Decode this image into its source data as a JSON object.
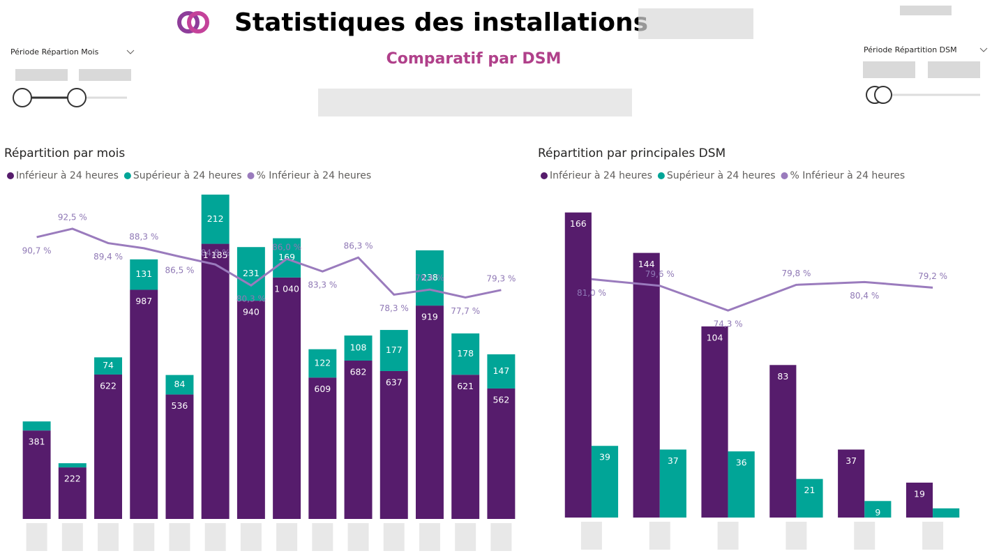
{
  "header": {
    "title": "Statistiques des installations",
    "subtitle": "Comparatif par DSM"
  },
  "slicers": {
    "left": "Période Répartion Mois",
    "right": "Période Répartition DSM"
  },
  "chart_data": [
    {
      "type": "bar",
      "stacked": true,
      "title": "Répartition par mois",
      "categories": [
        null,
        null,
        null,
        null,
        null,
        null,
        null,
        null,
        null,
        null,
        null,
        null,
        null,
        null
      ],
      "ylim": [
        0,
        1400
      ],
      "y2lim": [
        30,
        100
      ],
      "series": [
        {
          "name": "Inférieur à 24 heures",
          "color": "#561c6c",
          "values": [
            381,
            222,
            622,
            987,
            536,
            1185,
            940,
            1040,
            609,
            682,
            637,
            919,
            621,
            562
          ],
          "value_labels": [
            "381",
            "222",
            "622",
            "987",
            "536",
            "1 185",
            "940",
            "1 040",
            "609",
            "682",
            "637",
            "919",
            "621",
            "562"
          ]
        },
        {
          "name": "Supérieur à 24 heures",
          "color": "#01a597",
          "values": [
            39,
            18,
            74,
            131,
            84,
            212,
            231,
            169,
            122,
            108,
            177,
            238,
            178,
            147
          ],
          "value_labels": [
            null,
            null,
            "74",
            "131",
            "84",
            "212",
            "231",
            "169",
            "122",
            "108",
            "177",
            "238",
            "178",
            "147"
          ]
        },
        {
          "name": "% Inférieur à 24 heures",
          "color": "#9a7bbd",
          "type": "line",
          "axis": "y2",
          "values": [
            90.7,
            92.5,
            89.4,
            88.3,
            86.5,
            84.8,
            80.3,
            86.0,
            83.3,
            86.3,
            78.3,
            79.4,
            77.7,
            79.3
          ],
          "value_labels": [
            "90,7 %",
            "92,5 %",
            "89,4 %",
            "88,3 %",
            "86,5 %",
            "84,8 %",
            "80,3 %",
            "86,0 %",
            "83,3 %",
            "86,3 %",
            "78,3 %",
            "79,4 %",
            "77,7 %",
            "79,3 %"
          ]
        }
      ]
    },
    {
      "type": "bar",
      "stacked": false,
      "title": "Répartition par principales DSM",
      "categories": [
        null,
        null,
        null,
        null,
        null,
        null
      ],
      "ylim": [
        0,
        178
      ],
      "y2lim": [
        30,
        100
      ],
      "series": [
        {
          "name": "Inférieur à 24 heures",
          "color": "#561c6c",
          "values": [
            166,
            144,
            104,
            83,
            37,
            19
          ],
          "value_labels": [
            "166",
            "144",
            "104",
            "83",
            "37",
            "19"
          ]
        },
        {
          "name": "Supérieur à 24 heures",
          "color": "#01a597",
          "values": [
            39,
            37,
            36,
            21,
            9,
            5
          ],
          "value_labels": [
            "39",
            "37",
            "36",
            "21",
            "9",
            null
          ]
        },
        {
          "name": "% Inférieur à 24 heures",
          "color": "#9a7bbd",
          "type": "line",
          "axis": "y2",
          "values": [
            81.0,
            79.6,
            74.3,
            79.8,
            80.4,
            79.2
          ],
          "value_labels": [
            "81,0 %",
            "79,6 %",
            "74,3 %",
            "79,8 %",
            "80,4 %",
            "79,2 %"
          ]
        }
      ]
    }
  ]
}
